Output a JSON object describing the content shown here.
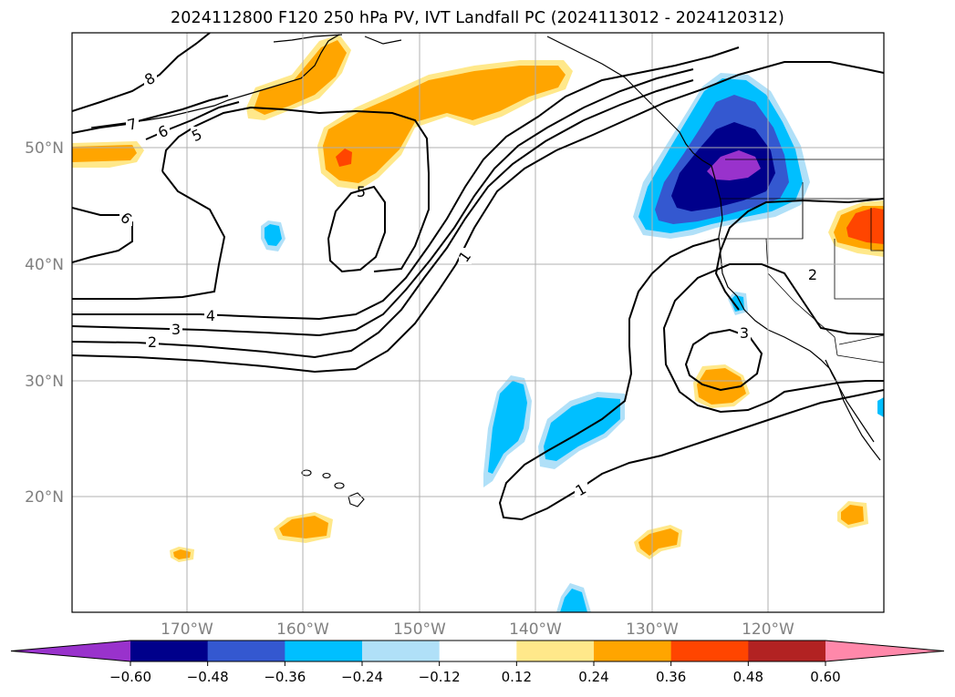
{
  "title": "2024112800 F120 250 hPa PV, IVT Landfall PC (2024113012 - 2024120312)",
  "chart_data": {
    "type": "map-contour",
    "title": "2024112800 F120 250 hPa PV, IVT Landfall PC (2024113012 - 2024120312)",
    "projection": "Lambert conformal / PlateCarree (North Pacific)",
    "lon_ticks": [
      "170°W",
      "160°W",
      "150°W",
      "140°W",
      "130°W",
      "120°W"
    ],
    "lat_ticks": [
      "20°N",
      "30°N",
      "40°N",
      "50°N"
    ],
    "grid": true,
    "contour_field": "250 hPa PV (PVU)",
    "contour_labels": [
      {
        "value": "8",
        "location": "upper-left"
      },
      {
        "value": "7",
        "location": "upper-left"
      },
      {
        "value": "6",
        "location": "upper-left"
      },
      {
        "value": "5",
        "location": "upper-left"
      },
      {
        "value": "6",
        "location": "left"
      },
      {
        "value": "5",
        "location": "center-left"
      },
      {
        "value": "4",
        "location": "left"
      },
      {
        "value": "3",
        "location": "left"
      },
      {
        "value": "2",
        "location": "left"
      },
      {
        "value": "1",
        "location": "center"
      },
      {
        "value": "2",
        "location": "right"
      },
      {
        "value": "3",
        "location": "right"
      },
      {
        "value": "1",
        "location": "lower-center"
      }
    ],
    "shaded_field": "IVT Landfall PC",
    "colorbar": {
      "levels": [
        -0.6,
        -0.48,
        -0.36,
        -0.24,
        -0.12,
        0.12,
        0.24,
        0.36,
        0.48,
        0.6
      ],
      "tick_labels": [
        "−0.60",
        "−0.48",
        "−0.36",
        "−0.24",
        "−0.12",
        "0.12",
        "0.24",
        "0.36",
        "0.48",
        "0.60"
      ],
      "colors": [
        "#9932cc",
        "#00008b",
        "#3458d0",
        "#00bfff",
        "#b0e0f8",
        "#ffffff",
        "#ffe88a",
        "#ffa500",
        "#ff4500",
        "#b22222",
        "#ff88aa"
      ],
      "extend": "both"
    }
  }
}
